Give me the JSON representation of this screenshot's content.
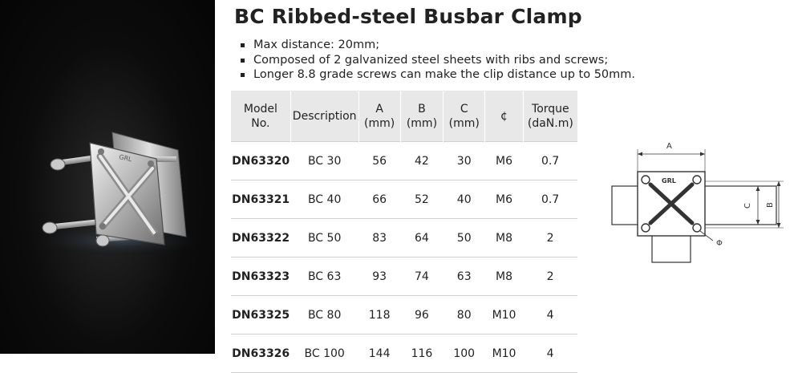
{
  "title": "BC Ribbed-steel Busbar Clamp",
  "bullets": [
    "Max distance: 20mm;",
    "Composed of 2 galvanized steel sheets with ribs and screws;",
    "Longer 8.8 grade screws can make the clip distance up to 50mm."
  ],
  "table": {
    "headers": {
      "model": [
        "Model",
        "No."
      ],
      "description": "Description",
      "a": [
        "A",
        "(mm)"
      ],
      "b": [
        "B",
        "(mm)"
      ],
      "c": [
        "C",
        "(mm)"
      ],
      "phi": "¢",
      "torque": [
        "Torque",
        "(daN.m)"
      ]
    },
    "rows": [
      {
        "model": "DN63320",
        "description": "BC 30",
        "a": "56",
        "b": "42",
        "c": "30",
        "phi": "M6",
        "torque": "0.7"
      },
      {
        "model": "DN63321",
        "description": "BC 40",
        "a": "66",
        "b": "52",
        "c": "40",
        "phi": "M6",
        "torque": "0.7"
      },
      {
        "model": "DN63322",
        "description": "BC 50",
        "a": "83",
        "b": "64",
        "c": "50",
        "phi": "M8",
        "torque": "2"
      },
      {
        "model": "DN63323",
        "description": "BC 63",
        "a": "93",
        "b": "74",
        "c": "63",
        "phi": "M8",
        "torque": "2"
      },
      {
        "model": "DN63325",
        "description": "BC 80",
        "a": "118",
        "b": "96",
        "c": "80",
        "phi": "M10",
        "torque": "4"
      },
      {
        "model": "DN63326",
        "description": "BC 100",
        "a": "144",
        "b": "116",
        "c": "100",
        "phi": "M10",
        "torque": "4"
      }
    ]
  },
  "diagram": {
    "label_a": "A",
    "label_b": "B",
    "label_c": "C",
    "label_phi": "Φ",
    "logo": "GRL"
  },
  "photo": {
    "logo": "GRL"
  },
  "colors": {
    "header_bg": "#e8e8e8",
    "photo_bg": "#0c0c0c",
    "text": "#222222"
  }
}
